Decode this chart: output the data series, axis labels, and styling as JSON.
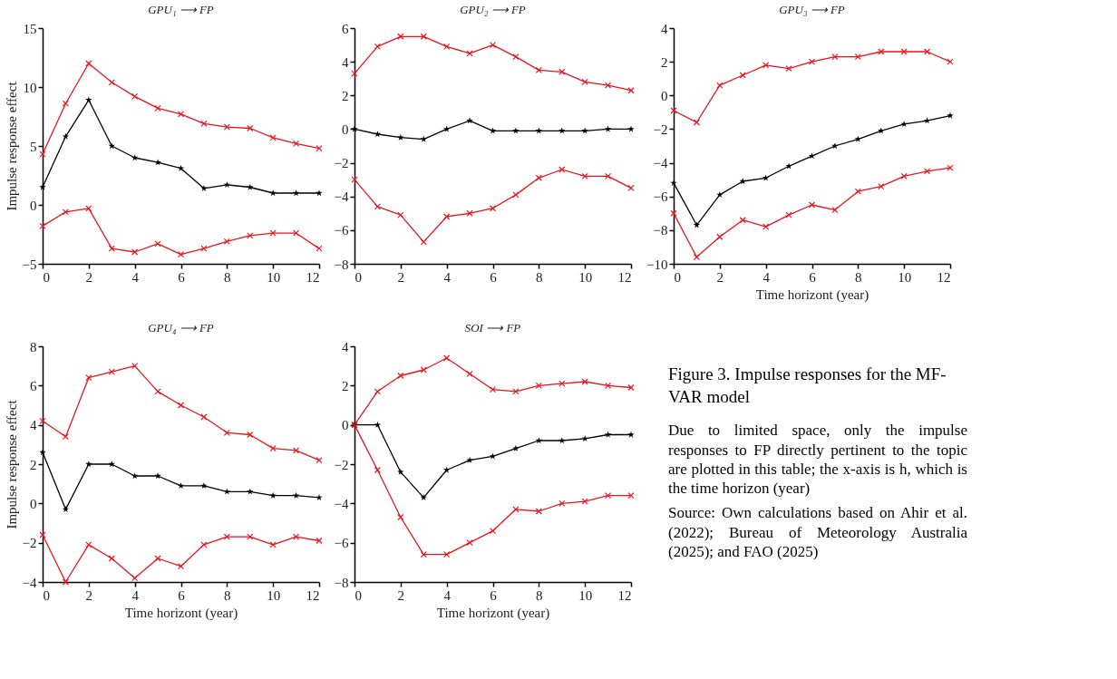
{
  "chart_data": [
    {
      "type": "line",
      "title": "GPU₁ ⟶ FP",
      "ylabel": "Impulse response effect",
      "x": [
        0,
        1,
        2,
        3,
        4,
        5,
        6,
        7,
        8,
        9,
        10,
        11,
        12
      ],
      "xlim": [
        0,
        12
      ],
      "xticks": [
        0,
        2,
        4,
        6,
        8,
        10,
        12
      ],
      "ylim": [
        -5,
        15
      ],
      "yticks": [
        -5,
        0,
        5,
        10,
        15
      ],
      "series": [
        {
          "color": "#e8141e",
          "marker": "cross",
          "values": [
            4.3,
            8.6,
            12.0,
            10.4,
            9.2,
            8.2,
            7.7,
            6.9,
            6.6,
            6.5,
            5.7,
            5.2,
            4.8
          ]
        },
        {
          "color": "#000000",
          "marker": "star",
          "values": [
            1.5,
            5.8,
            8.9,
            5.0,
            4.0,
            3.6,
            3.1,
            1.4,
            1.7,
            1.5,
            1.0,
            1.0,
            1.0
          ]
        },
        {
          "color": "#e8141e",
          "marker": "cross",
          "values": [
            -1.8,
            -0.6,
            -0.3,
            -3.7,
            -4.0,
            -3.3,
            -4.2,
            -3.7,
            -3.1,
            -2.6,
            -2.4,
            -2.4,
            -3.7
          ]
        }
      ]
    },
    {
      "type": "line",
      "title": "GPU₂ ⟶ FP",
      "x": [
        0,
        1,
        2,
        3,
        4,
        5,
        6,
        7,
        8,
        9,
        10,
        11,
        12
      ],
      "xlim": [
        0,
        12
      ],
      "xticks": [
        0,
        2,
        4,
        6,
        8,
        10,
        12
      ],
      "ylim": [
        -8,
        6
      ],
      "yticks": [
        -8,
        -6,
        -4,
        -2,
        0,
        2,
        4,
        6
      ],
      "series": [
        {
          "color": "#e8141e",
          "marker": "cross",
          "values": [
            3.3,
            4.9,
            5.5,
            5.5,
            4.9,
            4.5,
            5.0,
            4.3,
            3.5,
            3.4,
            2.8,
            2.6,
            2.3
          ]
        },
        {
          "color": "#000000",
          "marker": "star",
          "values": [
            0,
            -0.3,
            -0.5,
            -0.6,
            0.0,
            0.5,
            -0.1,
            -0.1,
            -0.1,
            -0.1,
            -0.1,
            0.0,
            0.0
          ]
        },
        {
          "color": "#e8141e",
          "marker": "cross",
          "values": [
            -3.0,
            -4.6,
            -5.1,
            -6.7,
            -5.2,
            -5.0,
            -4.7,
            -3.9,
            -2.9,
            -2.4,
            -2.8,
            -2.8,
            -3.5
          ]
        }
      ]
    },
    {
      "type": "line",
      "title": "GPU₃ ⟶ FP",
      "xlabel": "Time horizont (year)",
      "x": [
        0,
        1,
        2,
        3,
        4,
        5,
        6,
        7,
        8,
        9,
        10,
        11,
        12
      ],
      "xlim": [
        0,
        12
      ],
      "xticks": [
        0,
        2,
        4,
        6,
        8,
        10,
        12
      ],
      "ylim": [
        -10,
        4
      ],
      "yticks": [
        -10,
        -8,
        -6,
        -4,
        -2,
        0,
        2,
        4
      ],
      "series": [
        {
          "color": "#e8141e",
          "marker": "cross",
          "values": [
            -0.9,
            -1.6,
            0.6,
            1.2,
            1.8,
            1.6,
            2.0,
            2.3,
            2.3,
            2.6,
            2.6,
            2.6,
            2.0
          ]
        },
        {
          "color": "#000000",
          "marker": "star",
          "values": [
            -5.2,
            -7.7,
            -5.9,
            -5.1,
            -4.9,
            -4.2,
            -3.6,
            -3.0,
            -2.6,
            -2.1,
            -1.7,
            -1.5,
            -1.2
          ]
        },
        {
          "color": "#e8141e",
          "marker": "cross",
          "values": [
            -7.0,
            -9.6,
            -8.4,
            -7.4,
            -7.8,
            -7.1,
            -6.5,
            -6.8,
            -5.7,
            -5.4,
            -4.8,
            -4.5,
            -4.3
          ]
        }
      ]
    },
    {
      "type": "line",
      "title": "GPU₄ ⟶ FP",
      "xlabel": "Time horizont (year)",
      "ylabel": "Impulse response effect",
      "x": [
        0,
        1,
        2,
        3,
        4,
        5,
        6,
        7,
        8,
        9,
        10,
        11,
        12
      ],
      "xlim": [
        0,
        12
      ],
      "xticks": [
        0,
        2,
        4,
        6,
        8,
        10,
        12
      ],
      "ylim": [
        -4,
        8
      ],
      "yticks": [
        -4,
        -2,
        0,
        2,
        4,
        6,
        8
      ],
      "series": [
        {
          "color": "#e8141e",
          "marker": "cross",
          "values": [
            4.2,
            3.4,
            6.4,
            6.7,
            7.0,
            5.7,
            5.0,
            4.4,
            3.6,
            3.5,
            2.8,
            2.7,
            2.2
          ]
        },
        {
          "color": "#000000",
          "marker": "star",
          "values": [
            2.6,
            -0.3,
            2.0,
            2.0,
            1.4,
            1.4,
            0.9,
            0.9,
            0.6,
            0.6,
            0.4,
            0.4,
            0.3
          ]
        },
        {
          "color": "#e8141e",
          "marker": "cross",
          "values": [
            -1.6,
            -4.0,
            -2.1,
            -2.8,
            -3.8,
            -2.8,
            -3.2,
            -2.1,
            -1.7,
            -1.7,
            -2.1,
            -1.7,
            -1.9
          ]
        }
      ]
    },
    {
      "type": "line",
      "title": "SOI ⟶ FP",
      "xlabel": "Time horizont (year)",
      "x": [
        0,
        1,
        2,
        3,
        4,
        5,
        6,
        7,
        8,
        9,
        10,
        11,
        12
      ],
      "xlim": [
        0,
        12
      ],
      "xticks": [
        0,
        2,
        4,
        6,
        8,
        10,
        12
      ],
      "ylim": [
        -8,
        4
      ],
      "yticks": [
        -8,
        -6,
        -4,
        -2,
        0,
        2,
        4
      ],
      "series": [
        {
          "color": "#e8141e",
          "marker": "cross",
          "values": [
            0,
            1.7,
            2.5,
            2.8,
            3.4,
            2.6,
            1.8,
            1.7,
            2.0,
            2.1,
            2.2,
            2.0,
            1.9
          ]
        },
        {
          "color": "#000000",
          "marker": "star",
          "values": [
            0,
            0,
            -2.4,
            -3.7,
            -2.3,
            -1.8,
            -1.6,
            -1.2,
            -0.8,
            -0.8,
            -0.7,
            -0.5,
            -0.5
          ]
        },
        {
          "color": "#e8141e",
          "marker": "cross",
          "values": [
            0,
            -2.3,
            -4.7,
            -6.6,
            -6.6,
            -6.0,
            -5.4,
            -4.3,
            -4.4,
            -4.0,
            -3.9,
            -3.6,
            -3.6
          ]
        }
      ]
    },
    {
      "type": "other",
      "title": "Figure 3. Impulse responses for the MF-VAR model",
      "annotations": [
        "Due to limited space, only the impulse responses to FP directly pertinent to the topic are plotted in this table; the x-axis is h, which is the time horizon (year)",
        "Source: Own calculations based on Ahir et al. (2022); Bureau of Meteorology Australia (2025); and FAO (2025)"
      ]
    }
  ]
}
